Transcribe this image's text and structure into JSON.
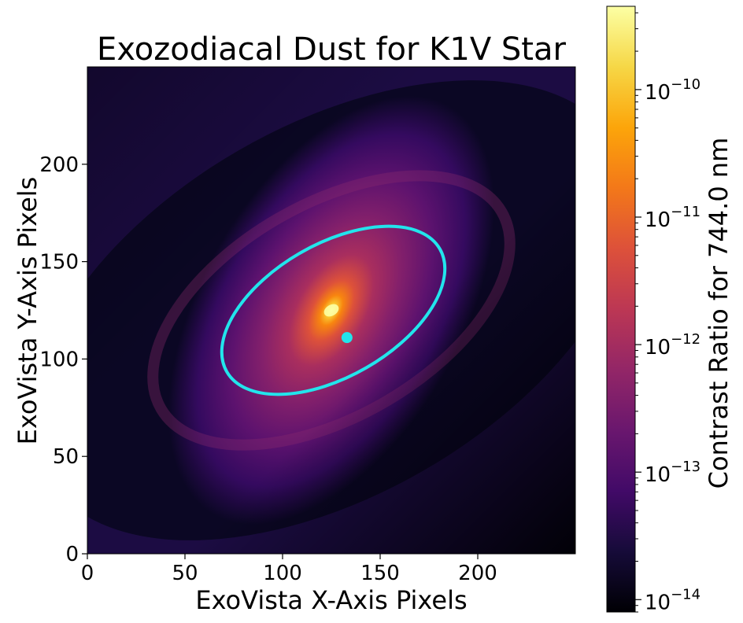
{
  "chart_data": {
    "type": "heatmap",
    "title": "Exozodiacal Dust for K1V Star",
    "xlabel": "ExoVista X-Axis Pixels",
    "ylabel": "ExoVista Y-Axis Pixels",
    "xlim": [
      0,
      250
    ],
    "ylim": [
      0,
      250
    ],
    "xticks": [
      0,
      50,
      100,
      150,
      200
    ],
    "yticks": [
      0,
      50,
      100,
      150,
      200
    ],
    "colormap": "inferno",
    "colorbar": {
      "label": "Contrast Ratio for 744.0 nm",
      "scale": "log",
      "range": [
        8e-15,
        4.5e-10
      ],
      "ticks": [
        {
          "value": 1e-14,
          "mantissa": "10",
          "exponent": "−14"
        },
        {
          "value": 1e-13,
          "mantissa": "10",
          "exponent": "−13"
        },
        {
          "value": 1e-12,
          "mantissa": "10",
          "exponent": "−12"
        },
        {
          "value": 1e-11,
          "mantissa": "10",
          "exponent": "−11"
        },
        {
          "value": 1e-10,
          "mantissa": "10",
          "exponent": "−10"
        }
      ]
    },
    "star_center": {
      "x": 125,
      "y": 125
    },
    "orbit": {
      "color": "#22e5ec",
      "center": {
        "x": 126,
        "y": 125
      },
      "semi_major": 63,
      "semi_minor": 34,
      "angle_deg": 30
    },
    "planet": {
      "x": 133,
      "y": 111,
      "color": "#22e5ec"
    },
    "grid": false,
    "legend": "none"
  }
}
